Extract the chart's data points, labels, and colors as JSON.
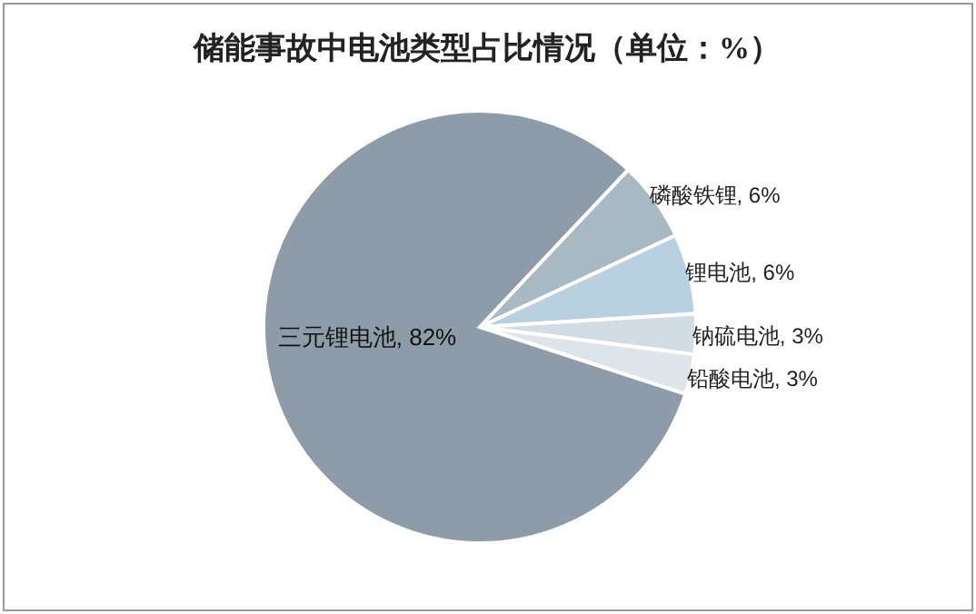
{
  "chart_data": {
    "type": "pie",
    "title": "储能事故中电池类型占比情况（单位：%）",
    "categories": [
      "磷酸铁锂",
      "锂电池",
      "钠硫电池",
      "铅酸电池",
      "三元锂电池"
    ],
    "values": [
      6,
      6,
      3,
      3,
      82
    ],
    "value_labels": [
      "6%",
      "6%",
      "3%",
      "3%",
      "82%"
    ],
    "colors": [
      "#a9b9c4",
      "#b8d0e0",
      "#d2dce4",
      "#dde5eb",
      "#8d9ca8"
    ]
  }
}
